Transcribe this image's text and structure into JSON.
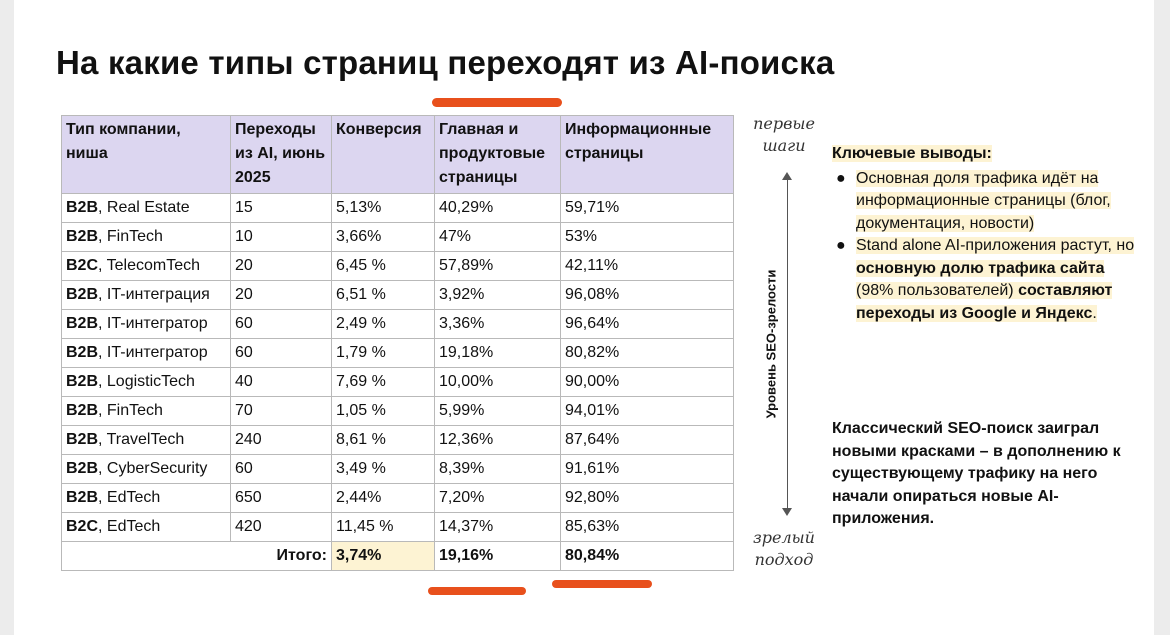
{
  "title": "На какие типы страниц переходят из AI-поиска",
  "colors": {
    "header_bg": "#dcd6f0",
    "highlight": "#fdf3d3",
    "accent_underline": "#e8501c"
  },
  "table": {
    "headers": [
      "Тип компании, ниша",
      "Переходы из AI, июнь 2025",
      "Конверсия",
      "Главная и продуктовые страницы",
      "Информационные страницы"
    ],
    "rows": [
      {
        "segment": "B2B",
        "niche": ", Real Estate",
        "traffic": "15",
        "conversion": "5,13%",
        "main": "40,29%",
        "info": "59,71%"
      },
      {
        "segment": "B2B",
        "niche": ", FinTech",
        "traffic": "10",
        "conversion": "3,66%",
        "main": "47%",
        "info": "53%"
      },
      {
        "segment": "B2C",
        "niche": ", TelecomTech",
        "traffic": "20",
        "conversion": "6,45 %",
        "main": "57,89%",
        "info": "42,11%"
      },
      {
        "segment": "B2B",
        "niche": ", IT-интеграция",
        "traffic": "20",
        "conversion": "6,51 %",
        "main": "3,92%",
        "info": "96,08%"
      },
      {
        "segment": "B2B",
        "niche": ", IT-интегратор",
        "traffic": "60",
        "conversion": "2,49 %",
        "main": "3,36%",
        "info": "96,64%"
      },
      {
        "segment": "B2B",
        "niche": ", IT-интегратор",
        "traffic": "60",
        "conversion": "1,79 %",
        "main": "19,18%",
        "info": "80,82%"
      },
      {
        "segment": "B2B",
        "niche": ", LogisticTech",
        "traffic": "40",
        "conversion": "7,69 %",
        "main": "10,00%",
        "info": "90,00%"
      },
      {
        "segment": "B2B",
        "niche": ", FinTech",
        "traffic": "70",
        "conversion": "1,05 %",
        "main": "5,99%",
        "info": "94,01%"
      },
      {
        "segment": "B2B",
        "niche": ", TravelTech",
        "traffic": "240",
        "conversion": "8,61 %",
        "main": "12,36%",
        "info": "87,64%"
      },
      {
        "segment": "B2B",
        "niche": ", CyberSecurity",
        "traffic": "60",
        "conversion": "3,49 %",
        "main": "8,39%",
        "info": "91,61%"
      },
      {
        "segment": "B2B",
        "niche": ", EdTech",
        "traffic": "650",
        "conversion": "2,44%",
        "main": "7,20%",
        "info": "92,80%"
      },
      {
        "segment": "B2C",
        "niche": ", EdTech",
        "traffic": "420",
        "conversion": "11,45 %",
        "main": "14,37%",
        "info": "85,63%"
      }
    ],
    "total": {
      "label": "Итого:",
      "conversion": "3,74%",
      "main": "19,16%",
      "info": "80,84%"
    }
  },
  "maturity_axis": {
    "top": "первые шаги",
    "bottom": "зрелый подход",
    "label": "Уровень SEO-зрелости"
  },
  "conclusions": {
    "title": "Ключевые выводы:",
    "points": [
      {
        "text": "Основная доля трафика идёт на информационные страницы (блог, документация, новости)"
      },
      {
        "t1": "Stand alone AI-приложения растут, но ",
        "b1": "основную долю трафика сайта",
        "t2": " (98% пользователей) ",
        "b2": "составляют переходы из Google и Яндекс",
        "t3": "."
      }
    ],
    "closing": "Классический SEO-поиск заиграл новыми красками – в дополнению к существующему трафику на него начали опираться новые AI-приложения."
  }
}
